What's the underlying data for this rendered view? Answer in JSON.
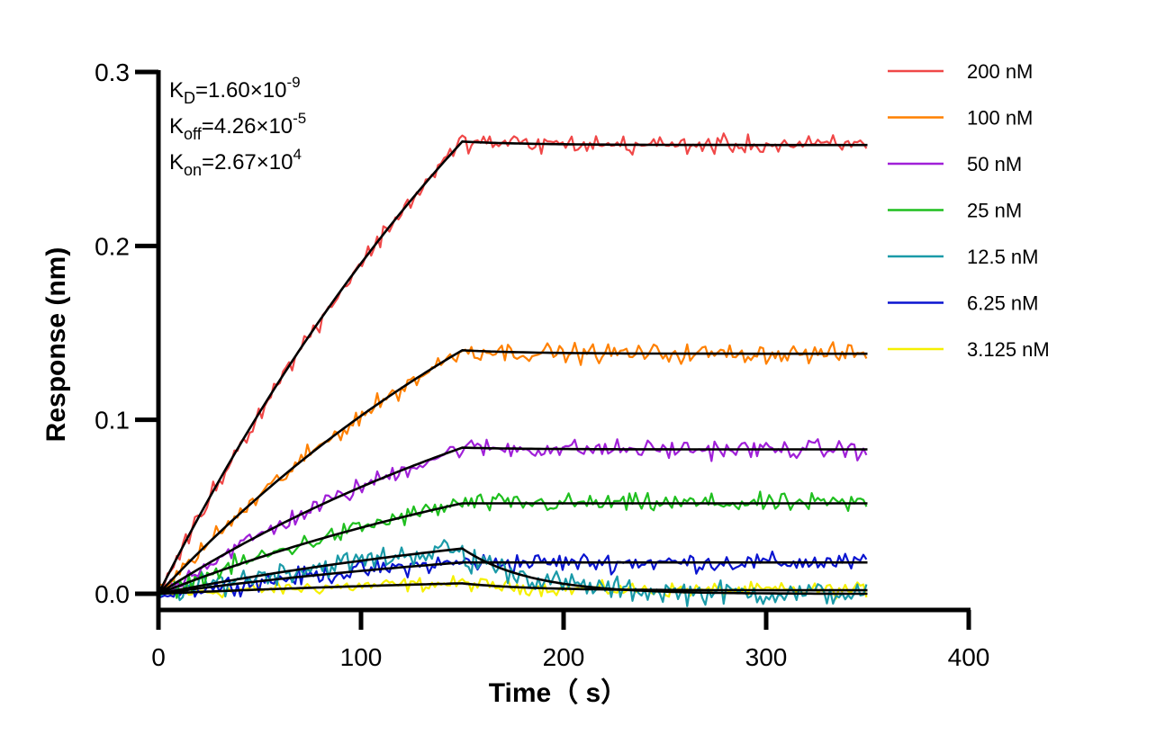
{
  "chart_data": {
    "type": "line",
    "xlabel": "Time（ s）",
    "ylabel": "Response (nm)",
    "xlim": [
      0,
      400
    ],
    "ylim": [
      -0.008,
      0.3
    ],
    "x_ticks": [
      0,
      100,
      200,
      300,
      400
    ],
    "y_ticks": [
      0.0,
      0.1,
      0.2,
      0.3
    ],
    "x_tick_labels": [
      "0",
      "100",
      "200",
      "300",
      "400"
    ],
    "y_tick_labels": [
      "0.0",
      "0.1",
      "0.2",
      "0.3"
    ],
    "grid": false,
    "legend_position": "top-right",
    "association_end": 150,
    "time_end": 350,
    "kinetics": [
      {
        "base": "K",
        "sub": "D",
        "value": "=1.60×10",
        "exp": "-9"
      },
      {
        "base": "K",
        "sub": "off",
        "value": "=4.26×10",
        "exp": "-5"
      },
      {
        "base": "K",
        "sub": "on",
        "value": "=2.67×10",
        "exp": "4"
      }
    ],
    "series": [
      {
        "name": "200 nM",
        "color": "#f04747",
        "plateau": 0.26,
        "dissociation_end": 0.258,
        "noise": 0.004
      },
      {
        "name": "100 nM",
        "color": "#ff8000",
        "plateau": 0.14,
        "dissociation_end": 0.138,
        "noise": 0.004
      },
      {
        "name": "50 nM",
        "color": "#a020d8",
        "plateau": 0.084,
        "dissociation_end": 0.083,
        "noise": 0.004
      },
      {
        "name": "25 nM",
        "color": "#1fbf1f",
        "plateau": 0.052,
        "dissociation_end": 0.052,
        "noise": 0.004
      },
      {
        "name": "12.5 nM",
        "color": "#1a9aa8",
        "plateau": 0.026,
        "dissociation_end": 0.0,
        "noise": 0.005
      },
      {
        "name": "6.25 nM",
        "color": "#0a14d0",
        "plateau": 0.018,
        "dissociation_end": 0.018,
        "noise": 0.004
      },
      {
        "name": "3.125 nM",
        "color": "#f5f000",
        "plateau": 0.006,
        "dissociation_end": 0.002,
        "noise": 0.003
      }
    ],
    "fit_color": "#000000"
  }
}
